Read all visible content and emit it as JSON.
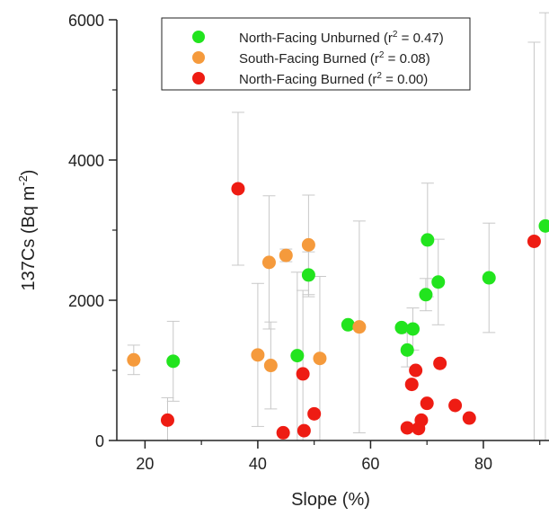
{
  "chart_data": {
    "type": "scatter",
    "xlabel": "Slope (%)",
    "ylabel": "137Cs (Bq m",
    "ylabel_sup": "-2",
    "ylabel_close": ")",
    "xlim": [
      15,
      91
    ],
    "ylim": [
      0,
      6000
    ],
    "xticks": [
      20,
      40,
      60,
      80
    ],
    "xtick_labels": [
      "20",
      "40",
      "60",
      "80"
    ],
    "xminor": [
      30,
      50,
      70,
      90
    ],
    "yticks": [
      0,
      2000,
      4000,
      6000
    ],
    "ytick_labels": [
      "0",
      "2000",
      "4000",
      "6000"
    ],
    "yminor": [
      1000,
      3000,
      5000
    ],
    "grid": false,
    "legend_position": "top",
    "series": [
      {
        "name": "North-Facing Unburned",
        "r2_label": "(r",
        "r2_sup": "2",
        "r2_value": " = 0.47)",
        "color": "#22e41e",
        "points": [
          {
            "x": 25,
            "y": 1130,
            "lo": 560,
            "hi": 1700
          },
          {
            "x": 47,
            "y": 1210,
            "lo": 0,
            "hi": 2400
          },
          {
            "x": 49,
            "y": 2360,
            "lo": 2050,
            "hi": 2690
          },
          {
            "x": 56,
            "y": 1650,
            "lo": 1640,
            "hi": 1660
          },
          {
            "x": 65.5,
            "y": 1610,
            "lo": 1580,
            "hi": 1640
          },
          {
            "x": 66.5,
            "y": 1290,
            "lo": 1050,
            "hi": 1530
          },
          {
            "x": 67.5,
            "y": 1590,
            "lo": 1290,
            "hi": 1890
          },
          {
            "x": 69.8,
            "y": 2080,
            "lo": 1850,
            "hi": 2310
          },
          {
            "x": 70.1,
            "y": 2860,
            "lo": 2050,
            "hi": 3670
          },
          {
            "x": 72,
            "y": 2260,
            "lo": 1650,
            "hi": 2870
          },
          {
            "x": 81,
            "y": 2320,
            "lo": 1540,
            "hi": 3100
          },
          {
            "x": 91,
            "y": 3060,
            "lo": 0,
            "hi": 6100
          }
        ]
      },
      {
        "name": "South-Facing Burned",
        "r2_label": "(r",
        "r2_sup": "2",
        "r2_value": " = 0.08)",
        "color": "#f59a3c",
        "points": [
          {
            "x": 18,
            "y": 1150,
            "lo": 940,
            "hi": 1360
          },
          {
            "x": 40,
            "y": 1220,
            "lo": 200,
            "hi": 2240
          },
          {
            "x": 42,
            "y": 2540,
            "lo": 1590,
            "hi": 3490
          },
          {
            "x": 42.3,
            "y": 1070,
            "lo": 450,
            "hi": 1690
          },
          {
            "x": 45,
            "y": 2640,
            "lo": 2550,
            "hi": 2730
          },
          {
            "x": 49,
            "y": 2790,
            "lo": 2080,
            "hi": 3500
          },
          {
            "x": 51,
            "y": 1170,
            "lo": 0,
            "hi": 2340
          },
          {
            "x": 58,
            "y": 1620,
            "lo": 110,
            "hi": 3130
          }
        ]
      },
      {
        "name": "North-Facing Burned",
        "r2_label": "(r",
        "r2_sup": "2",
        "r2_value": " = 0.00)",
        "color": "#ee1c13",
        "points": [
          {
            "x": 24,
            "y": 290,
            "lo": -30,
            "hi": 610
          },
          {
            "x": 36.5,
            "y": 3590,
            "lo": 2500,
            "hi": 4680
          },
          {
            "x": 44.5,
            "y": 110,
            "lo": 100,
            "hi": 120
          },
          {
            "x": 48,
            "y": 950,
            "lo": 0,
            "hi": 2140
          },
          {
            "x": 48.2,
            "y": 140,
            "lo": 130,
            "hi": 150
          },
          {
            "x": 50,
            "y": 380,
            "lo": 370,
            "hi": 390
          },
          {
            "x": 66.5,
            "y": 180,
            "lo": 170,
            "hi": 190
          },
          {
            "x": 67.3,
            "y": 800,
            "lo": 780,
            "hi": 820
          },
          {
            "x": 68,
            "y": 1000,
            "lo": 980,
            "hi": 1020
          },
          {
            "x": 68.5,
            "y": 170,
            "lo": 160,
            "hi": 180
          },
          {
            "x": 69,
            "y": 290,
            "lo": 280,
            "hi": 300
          },
          {
            "x": 70,
            "y": 530,
            "lo": 520,
            "hi": 540
          },
          {
            "x": 72.3,
            "y": 1100,
            "lo": 1080,
            "hi": 1120
          },
          {
            "x": 75,
            "y": 500,
            "lo": 490,
            "hi": 510
          },
          {
            "x": 77.5,
            "y": 320,
            "lo": 310,
            "hi": 330
          },
          {
            "x": 89,
            "y": 2840,
            "lo": 0,
            "hi": 5680
          }
        ]
      }
    ]
  }
}
